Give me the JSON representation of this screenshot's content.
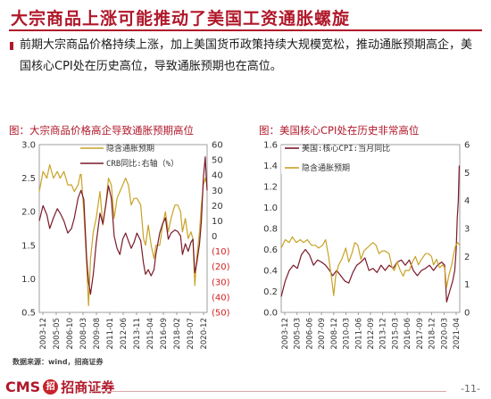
{
  "slide": {
    "title": "大宗商品上涨可能推动了美国工资通胀螺旋",
    "intro": "前期大宗商品价格持续上涨，加上美国货币政策持续大规模宽松，推动通胀预期高企，美国核心CPI处在历史高位，导致通胀预期也在高位。",
    "source": "数据来源：wind，招商证券",
    "logo_text": "CMS",
    "logo_badge": "招",
    "logo_cn": "招商证券",
    "page_number": "-11-",
    "brand_color": "#b0182a"
  },
  "chart_data": [
    {
      "type": "line",
      "title": "图：大宗商品价格高企导致通胀预期高位",
      "left_axis": {
        "ylim": [
          0.5,
          3.0
        ],
        "ticks": [
          "0.5",
          "1.0",
          "1.5",
          "2.0",
          "2.5",
          "3.0"
        ],
        "tick_values": [
          0.5,
          1.0,
          1.5,
          2.0,
          2.5,
          3.0
        ]
      },
      "right_axis": {
        "ylim": [
          -50,
          60
        ],
        "ticks": [
          "(50)",
          "(40)",
          "(30)",
          "(20)",
          "(10)",
          "0",
          "10",
          "20",
          "30",
          "40",
          "50",
          "60"
        ],
        "tick_values": [
          -50,
          -40,
          -30,
          -20,
          -10,
          0,
          10,
          20,
          30,
          40,
          50,
          60
        ]
      },
      "x_ticks": [
        "2003-12",
        "2005-05",
        "2006-10",
        "2008-03",
        "2009-08",
        "2011-01",
        "2012-06",
        "2013-11",
        "2015-04",
        "2016-09",
        "2018-02",
        "2019-07",
        "2020-12"
      ],
      "x_range": [
        2003.9,
        2021.6
      ],
      "series": [
        {
          "name": "隐含通胀预期",
          "axis": "left",
          "color": "#c9a227",
          "points": [
            [
              2003.9,
              2.3
            ],
            [
              2004.3,
              2.6
            ],
            [
              2004.7,
              2.5
            ],
            [
              2005.0,
              2.7
            ],
            [
              2005.4,
              2.5
            ],
            [
              2005.8,
              2.6
            ],
            [
              2006.1,
              2.5
            ],
            [
              2006.5,
              2.6
            ],
            [
              2006.9,
              2.4
            ],
            [
              2007.3,
              2.4
            ],
            [
              2007.6,
              2.3
            ],
            [
              2008.0,
              2.4
            ],
            [
              2008.3,
              2.6
            ],
            [
              2008.6,
              2.0
            ],
            [
              2008.9,
              1.2
            ],
            [
              2009.1,
              0.6
            ],
            [
              2009.3,
              1.3
            ],
            [
              2009.6,
              1.7
            ],
            [
              2009.9,
              1.9
            ],
            [
              2010.3,
              2.3
            ],
            [
              2010.6,
              1.8
            ],
            [
              2010.9,
              2.1
            ],
            [
              2011.2,
              2.5
            ],
            [
              2011.5,
              2.4
            ],
            [
              2011.8,
              1.9
            ],
            [
              2012.1,
              2.2
            ],
            [
              2012.4,
              2.3
            ],
            [
              2012.7,
              2.4
            ],
            [
              2013.0,
              2.5
            ],
            [
              2013.3,
              2.4
            ],
            [
              2013.6,
              2.1
            ],
            [
              2013.9,
              2.2
            ],
            [
              2014.2,
              2.2
            ],
            [
              2014.6,
              2.1
            ],
            [
              2014.9,
              1.6
            ],
            [
              2015.1,
              1.5
            ],
            [
              2015.4,
              1.8
            ],
            [
              2015.7,
              1.5
            ],
            [
              2016.0,
              1.3
            ],
            [
              2016.2,
              1.5
            ],
            [
              2016.6,
              1.5
            ],
            [
              2016.9,
              1.8
            ],
            [
              2017.2,
              2.0
            ],
            [
              2017.5,
              1.7
            ],
            [
              2017.8,
              1.9
            ],
            [
              2018.2,
              2.1
            ],
            [
              2018.5,
              2.1
            ],
            [
              2018.8,
              2.0
            ],
            [
              2019.0,
              1.7
            ],
            [
              2019.3,
              1.9
            ],
            [
              2019.6,
              1.6
            ],
            [
              2019.9,
              1.7
            ],
            [
              2020.1,
              1.6
            ],
            [
              2020.3,
              0.9
            ],
            [
              2020.5,
              1.3
            ],
            [
              2020.8,
              1.7
            ],
            [
              2021.0,
              2.1
            ],
            [
              2021.2,
              2.4
            ],
            [
              2021.4,
              2.5
            ],
            [
              2021.6,
              2.4
            ]
          ]
        },
        {
          "name": "CRB同比:右轴（%）",
          "axis": "right",
          "color": "#7a1a2a",
          "points": [
            [
              2003.9,
              10
            ],
            [
              2004.3,
              20
            ],
            [
              2004.7,
              14
            ],
            [
              2005.0,
              5
            ],
            [
              2005.4,
              12
            ],
            [
              2005.8,
              18
            ],
            [
              2006.1,
              15
            ],
            [
              2006.5,
              10
            ],
            [
              2006.9,
              2
            ],
            [
              2007.3,
              5
            ],
            [
              2007.6,
              12
            ],
            [
              2008.0,
              25
            ],
            [
              2008.3,
              30
            ],
            [
              2008.6,
              24
            ],
            [
              2008.9,
              -15
            ],
            [
              2009.1,
              -30
            ],
            [
              2009.3,
              -38
            ],
            [
              2009.6,
              -25
            ],
            [
              2009.9,
              -5
            ],
            [
              2010.3,
              15
            ],
            [
              2010.6,
              8
            ],
            [
              2010.9,
              20
            ],
            [
              2011.2,
              33
            ],
            [
              2011.5,
              25
            ],
            [
              2011.8,
              0
            ],
            [
              2012.1,
              -8
            ],
            [
              2012.4,
              -12
            ],
            [
              2012.7,
              -2
            ],
            [
              2013.0,
              2
            ],
            [
              2013.3,
              -3
            ],
            [
              2013.6,
              -8
            ],
            [
              2013.9,
              -4
            ],
            [
              2014.2,
              2
            ],
            [
              2014.6,
              -3
            ],
            [
              2014.9,
              -18
            ],
            [
              2015.1,
              -25
            ],
            [
              2015.4,
              -22
            ],
            [
              2015.7,
              -26
            ],
            [
              2016.0,
              -22
            ],
            [
              2016.2,
              -12
            ],
            [
              2016.6,
              2
            ],
            [
              2016.9,
              8
            ],
            [
              2017.2,
              12
            ],
            [
              2017.5,
              -2
            ],
            [
              2017.8,
              2
            ],
            [
              2018.2,
              4
            ],
            [
              2018.5,
              3
            ],
            [
              2018.8,
              0
            ],
            [
              2019.0,
              -12
            ],
            [
              2019.3,
              -5
            ],
            [
              2019.6,
              -10
            ],
            [
              2019.9,
              -4
            ],
            [
              2020.1,
              -2
            ],
            [
              2020.3,
              -24
            ],
            [
              2020.5,
              -18
            ],
            [
              2020.8,
              -5
            ],
            [
              2021.0,
              10
            ],
            [
              2021.2,
              38
            ],
            [
              2021.4,
              52
            ],
            [
              2021.5,
              40
            ],
            [
              2021.6,
              30
            ]
          ]
        }
      ]
    },
    {
      "type": "line",
      "title": "图：美国核心CPI处在历史非常高位",
      "left_axis": {
        "ylim": [
          0.0,
          1.6
        ],
        "ticks": [
          "0.0",
          "0.2",
          "0.4",
          "0.6",
          "0.8",
          "1.0",
          "1.2",
          "1.4",
          "1.6"
        ],
        "tick_values": [
          0,
          0.2,
          0.4,
          0.6,
          0.8,
          1.0,
          1.2,
          1.4,
          1.6
        ]
      },
      "right_axis": {
        "ylim": [
          0,
          6
        ],
        "ticks": [
          "0",
          "1",
          "2",
          "3",
          "4",
          "5",
          "6"
        ],
        "tick_values": [
          0,
          1,
          2,
          3,
          4,
          5,
          6
        ]
      },
      "x_ticks": [
        "2003-12",
        "2005-03",
        "2006-06",
        "2007-09",
        "2008-12",
        "2010-03",
        "2011-06",
        "2012-09",
        "2013-12",
        "2015-03",
        "2016-06",
        "2017-09",
        "2018-12",
        "2020-03",
        "2021-04"
      ],
      "x_range": [
        2003.9,
        2021.6
      ],
      "series": [
        {
          "name": "美国:核心CPI:当月同比",
          "axis": "left",
          "color": "#7a1a2a",
          "points": [
            [
              2003.9,
              0.15
            ],
            [
              2004.3,
              0.3
            ],
            [
              2004.7,
              0.4
            ],
            [
              2005.1,
              0.45
            ],
            [
              2005.5,
              0.42
            ],
            [
              2005.9,
              0.55
            ],
            [
              2006.3,
              0.6
            ],
            [
              2006.7,
              0.55
            ],
            [
              2007.1,
              0.45
            ],
            [
              2007.5,
              0.5
            ],
            [
              2007.9,
              0.48
            ],
            [
              2008.3,
              0.45
            ],
            [
              2008.7,
              0.4
            ],
            [
              2009.0,
              0.35
            ],
            [
              2009.4,
              0.4
            ],
            [
              2009.8,
              0.35
            ],
            [
              2010.2,
              0.3
            ],
            [
              2010.6,
              0.28
            ],
            [
              2011.0,
              0.38
            ],
            [
              2011.4,
              0.45
            ],
            [
              2011.8,
              0.48
            ],
            [
              2012.2,
              0.52
            ],
            [
              2012.6,
              0.4
            ],
            [
              2013.0,
              0.42
            ],
            [
              2013.4,
              0.38
            ],
            [
              2013.8,
              0.45
            ],
            [
              2014.2,
              0.4
            ],
            [
              2014.6,
              0.45
            ],
            [
              2015.0,
              0.42
            ],
            [
              2015.4,
              0.48
            ],
            [
              2015.8,
              0.5
            ],
            [
              2016.2,
              0.45
            ],
            [
              2016.6,
              0.5
            ],
            [
              2017.0,
              0.4
            ],
            [
              2017.4,
              0.35
            ],
            [
              2017.8,
              0.4
            ],
            [
              2018.2,
              0.42
            ],
            [
              2018.6,
              0.45
            ],
            [
              2019.0,
              0.4
            ],
            [
              2019.4,
              0.45
            ],
            [
              2019.8,
              0.48
            ],
            [
              2020.1,
              0.45
            ],
            [
              2020.3,
              0.1
            ],
            [
              2020.6,
              0.2
            ],
            [
              2020.9,
              0.3
            ],
            [
              2021.1,
              0.4
            ],
            [
              2021.25,
              0.6
            ],
            [
              2021.35,
              0.9
            ],
            [
              2021.45,
              1.05
            ],
            [
              2021.55,
              1.4
            ]
          ]
        },
        {
          "name": "隐含通胀预期",
          "axis": "right",
          "color": "#c9a227",
          "points": [
            [
              2003.9,
              2.3
            ],
            [
              2004.3,
              2.6
            ],
            [
              2004.7,
              2.5
            ],
            [
              2005.0,
              2.7
            ],
            [
              2005.4,
              2.5
            ],
            [
              2005.8,
              2.6
            ],
            [
              2006.1,
              2.5
            ],
            [
              2006.5,
              2.6
            ],
            [
              2006.9,
              2.4
            ],
            [
              2007.3,
              2.4
            ],
            [
              2007.6,
              2.3
            ],
            [
              2008.0,
              2.4
            ],
            [
              2008.3,
              2.6
            ],
            [
              2008.6,
              2.0
            ],
            [
              2008.9,
              1.2
            ],
            [
              2009.1,
              0.6
            ],
            [
              2009.3,
              1.3
            ],
            [
              2009.6,
              1.7
            ],
            [
              2009.9,
              1.9
            ],
            [
              2010.3,
              2.3
            ],
            [
              2010.6,
              1.8
            ],
            [
              2010.9,
              2.1
            ],
            [
              2011.2,
              2.5
            ],
            [
              2011.5,
              2.4
            ],
            [
              2011.8,
              1.9
            ],
            [
              2012.1,
              2.2
            ],
            [
              2012.4,
              2.3
            ],
            [
              2012.7,
              2.4
            ],
            [
              2013.0,
              2.5
            ],
            [
              2013.3,
              2.4
            ],
            [
              2013.6,
              2.1
            ],
            [
              2013.9,
              2.2
            ],
            [
              2014.2,
              2.2
            ],
            [
              2014.6,
              2.1
            ],
            [
              2014.9,
              1.6
            ],
            [
              2015.1,
              1.5
            ],
            [
              2015.4,
              1.8
            ],
            [
              2015.7,
              1.5
            ],
            [
              2016.0,
              1.3
            ],
            [
              2016.2,
              1.5
            ],
            [
              2016.6,
              1.5
            ],
            [
              2016.9,
              1.8
            ],
            [
              2017.2,
              2.0
            ],
            [
              2017.5,
              1.7
            ],
            [
              2017.8,
              1.9
            ],
            [
              2018.2,
              2.1
            ],
            [
              2018.5,
              2.1
            ],
            [
              2018.8,
              2.0
            ],
            [
              2019.0,
              1.7
            ],
            [
              2019.3,
              1.9
            ],
            [
              2019.6,
              1.6
            ],
            [
              2019.9,
              1.7
            ],
            [
              2020.1,
              1.6
            ],
            [
              2020.3,
              0.9
            ],
            [
              2020.5,
              1.3
            ],
            [
              2020.8,
              1.7
            ],
            [
              2021.0,
              2.1
            ],
            [
              2021.2,
              2.4
            ],
            [
              2021.4,
              2.5
            ],
            [
              2021.6,
              2.4
            ]
          ]
        }
      ]
    }
  ]
}
